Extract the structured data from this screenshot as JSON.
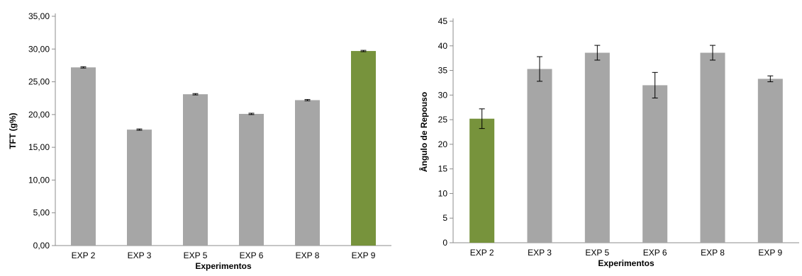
{
  "chart_data": [
    {
      "type": "bar",
      "title": "",
      "xlabel": "Experimentos",
      "ylabel": "TFT (g%)",
      "categories": [
        "EXP 2",
        "EXP 3",
        "EXP 5",
        "EXP 6",
        "EXP 8",
        "EXP 9"
      ],
      "values": [
        27.2,
        17.7,
        23.1,
        20.1,
        22.2,
        29.7
      ],
      "errors": [
        0.1,
        0.1,
        0.1,
        0.1,
        0.1,
        0.1
      ],
      "ylim": [
        0,
        35
      ],
      "yticks": [
        "0,00",
        "5,00",
        "10,00",
        "15,00",
        "20,00",
        "25,00",
        "30,00",
        "35,00"
      ],
      "bar_colors": [
        "#a6a6a6",
        "#a6a6a6",
        "#a6a6a6",
        "#a6a6a6",
        "#a6a6a6",
        "#77933c"
      ],
      "grid": false,
      "legend": "none"
    },
    {
      "type": "bar",
      "title": "",
      "xlabel": "Experimentos",
      "ylabel": "Ângulo de Repouso",
      "categories": [
        "EXP 2",
        "EXP 3",
        "EXP 5",
        "EXP 6",
        "EXP 8",
        "EXP 9"
      ],
      "values": [
        25.2,
        35.3,
        38.6,
        32.0,
        38.6,
        33.3
      ],
      "errors": [
        2.0,
        2.5,
        1.5,
        2.6,
        1.5,
        0.6
      ],
      "ylim": [
        0,
        45
      ],
      "yticks": [
        "0",
        "5",
        "10",
        "15",
        "20",
        "25",
        "30",
        "35",
        "40",
        "45"
      ],
      "bar_colors": [
        "#77933c",
        "#a6a6a6",
        "#a6a6a6",
        "#a6a6a6",
        "#a6a6a6",
        "#a6a6a6"
      ],
      "grid": false,
      "legend": "none"
    }
  ],
  "style": {
    "axis_color": "#8c8c8c",
    "text_color": "#000000",
    "error_bar_color": "#000000"
  }
}
